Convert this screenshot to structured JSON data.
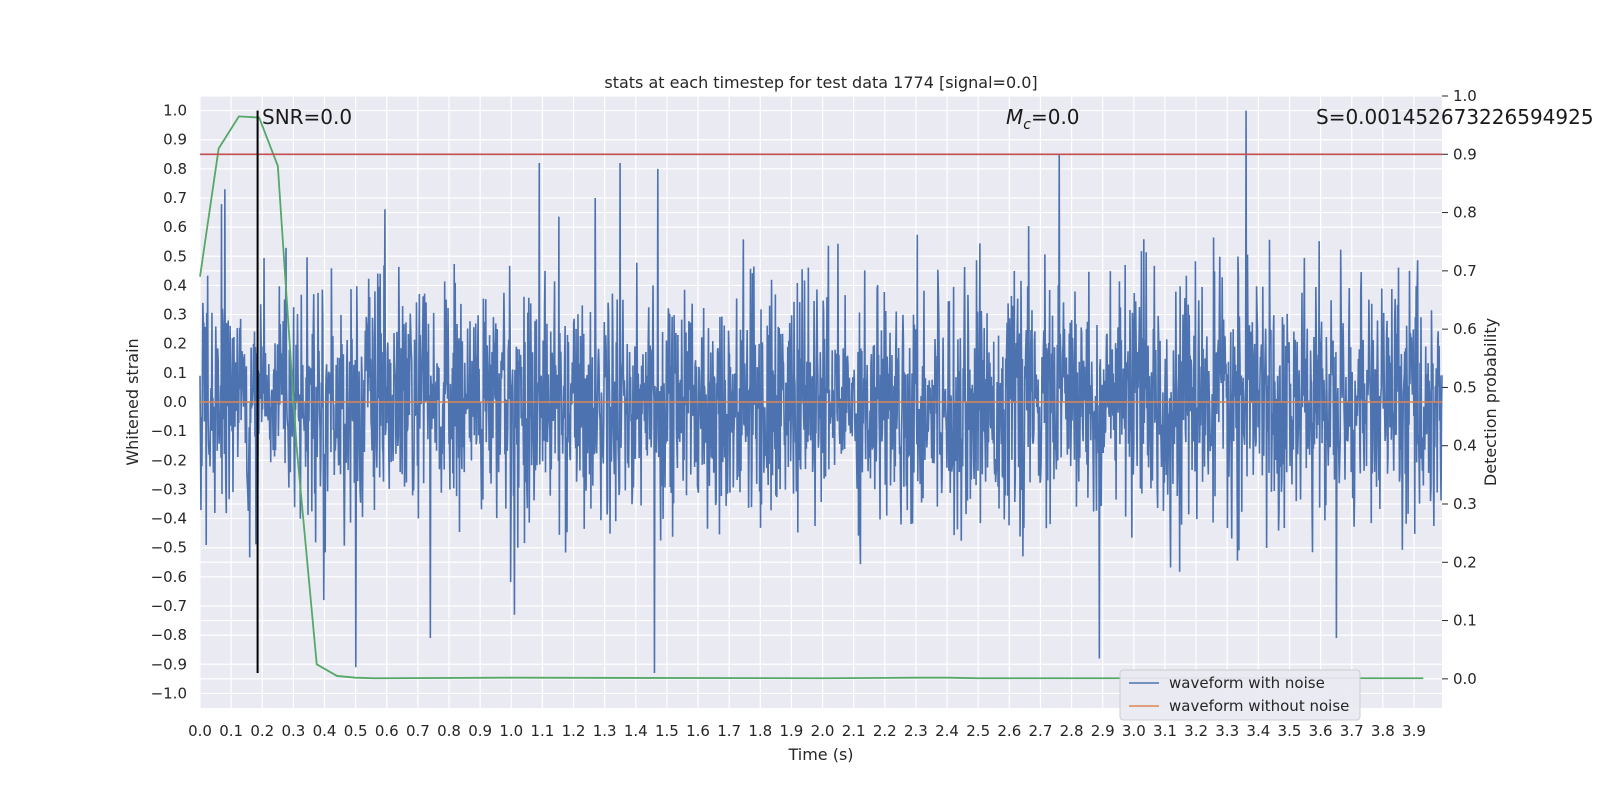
{
  "chart_data": {
    "type": "line",
    "title": "stats at each timestep for test data 1774 [signal=0.0]",
    "xlabel": "Time (s)",
    "ylabel": "Whitened strain",
    "y2label": "Detection probability",
    "xlim": [
      0.0,
      3.99
    ],
    "ylim": [
      -1.05,
      1.05
    ],
    "y2lim": [
      -0.05,
      1.0
    ],
    "x_ticks": [
      "0.0",
      "0.1",
      "0.2",
      "0.3",
      "0.4",
      "0.5",
      "0.6",
      "0.7",
      "0.8",
      "0.9",
      "1.0",
      "1.1",
      "1.2",
      "1.3",
      "1.4",
      "1.5",
      "1.6",
      "1.7",
      "1.8",
      "1.9",
      "2.0",
      "2.1",
      "2.2",
      "2.3",
      "2.4",
      "2.5",
      "2.6",
      "2.7",
      "2.8",
      "2.9",
      "3.0",
      "3.1",
      "3.2",
      "3.3",
      "3.4",
      "3.5",
      "3.6",
      "3.7",
      "3.8",
      "3.9"
    ],
    "y_ticks": [
      "1.0",
      "0.9",
      "0.8",
      "0.7",
      "0.6",
      "0.5",
      "0.4",
      "0.3",
      "0.2",
      "0.1",
      "0.0",
      "−0.1",
      "−0.2",
      "−0.3",
      "−0.4",
      "−0.5",
      "−0.6",
      "−0.7",
      "−0.8",
      "−0.9",
      "−1.0"
    ],
    "y2_ticks": [
      "1.0",
      "0.9",
      "0.8",
      "0.7",
      "0.6",
      "0.5",
      "0.4",
      "0.3",
      "0.2",
      "0.1",
      "0.0"
    ],
    "grid": true,
    "legend_position": "bottom-right",
    "annotations": {
      "snr": "SNR=0.0",
      "mc_symbol": "M",
      "mc_sub": "c",
      "mc_value": "=0.0",
      "s": "S=0.00145267322659492​5"
    },
    "series": [
      {
        "name": "waveform with noise",
        "color": "#4c72b0",
        "axis": "left",
        "style": "dense-noise",
        "peaks": [
          {
            "x": 0.08,
            "y": 0.73
          },
          {
            "x": 1.09,
            "y": 0.82
          },
          {
            "x": 1.35,
            "y": 0.82
          },
          {
            "x": 1.47,
            "y": 0.8
          },
          {
            "x": 2.76,
            "y": 0.85
          },
          {
            "x": 3.36,
            "y": 1.0
          },
          {
            "x": 1.46,
            "y": -0.93
          },
          {
            "x": 2.89,
            "y": -0.88
          },
          {
            "x": 0.5,
            "y": -0.91
          },
          {
            "x": 3.65,
            "y": -0.81
          },
          {
            "x": 0.74,
            "y": -0.81
          },
          {
            "x": 1.01,
            "y": -0.73
          }
        ]
      },
      {
        "name": "waveform without noise",
        "color": "#dd8452",
        "axis": "left",
        "x": [
          0.0,
          3.99
        ],
        "y": [
          0.0,
          0.0
        ]
      },
      {
        "name": "",
        "color": "#55a868",
        "axis": "right",
        "x": [
          0.0,
          0.06,
          0.125,
          0.19,
          0.25,
          0.31,
          0.375,
          0.44,
          0.5,
          0.56,
          1.0,
          2.0,
          2.3,
          2.4,
          2.5,
          3.0,
          3.5,
          3.93
        ],
        "y": [
          0.69,
          0.91,
          0.965,
          0.963,
          0.88,
          0.4,
          0.025,
          0.005,
          0.002,
          0.001,
          0.002,
          0.001,
          0.002,
          0.002,
          0.001,
          0.001,
          0.001,
          0.001
        ]
      }
    ],
    "threshold": {
      "axis": "right",
      "value": 0.9,
      "color": "#c44e52"
    },
    "marker_line": {
      "x": 0.185,
      "y": [
        -0.93,
        1.0
      ],
      "color": "#000000"
    }
  }
}
